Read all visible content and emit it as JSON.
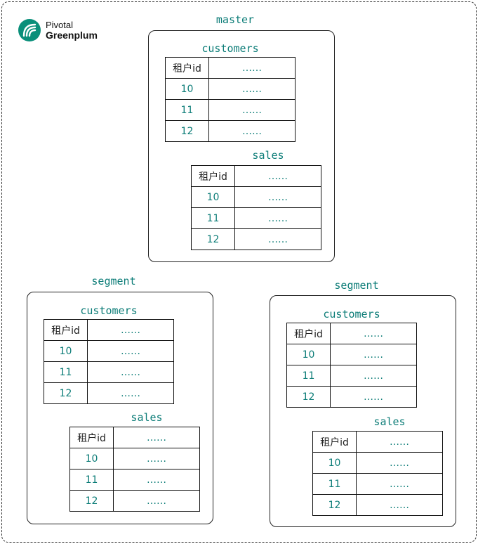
{
  "logo": {
    "line1": "Pivotal",
    "line2": "Greenplum"
  },
  "nodes": [
    {
      "title": "master",
      "tables": [
        {
          "name": "customers",
          "header": [
            "租户id",
            "……"
          ],
          "rows": [
            [
              "10",
              "……"
            ],
            [
              "11",
              "……"
            ],
            [
              "12",
              "……"
            ]
          ]
        },
        {
          "name": "sales",
          "header": [
            "租户id",
            "……"
          ],
          "rows": [
            [
              "10",
              "……"
            ],
            [
              "11",
              "……"
            ],
            [
              "12",
              "……"
            ]
          ]
        }
      ]
    },
    {
      "title": "segment",
      "tables": [
        {
          "name": "customers",
          "header": [
            "租户id",
            "……"
          ],
          "rows": [
            [
              "10",
              "……"
            ],
            [
              "11",
              "……"
            ],
            [
              "12",
              "……"
            ]
          ]
        },
        {
          "name": "sales",
          "header": [
            "租户id",
            "……"
          ],
          "rows": [
            [
              "10",
              "……"
            ],
            [
              "11",
              "……"
            ],
            [
              "12",
              "……"
            ]
          ]
        }
      ]
    },
    {
      "title": "segment",
      "tables": [
        {
          "name": "customers",
          "header": [
            "租户id",
            "……"
          ],
          "rows": [
            [
              "10",
              "……"
            ],
            [
              "11",
              "……"
            ],
            [
              "12",
              "……"
            ]
          ]
        },
        {
          "name": "sales",
          "header": [
            "租户id",
            "……"
          ],
          "rows": [
            [
              "10",
              "……"
            ],
            [
              "11",
              "……"
            ],
            [
              "12",
              "……"
            ]
          ]
        }
      ]
    }
  ]
}
